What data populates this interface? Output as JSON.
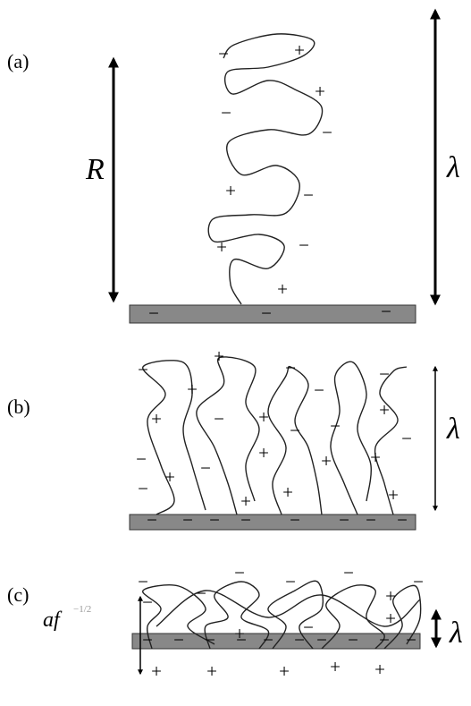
{
  "panels": [
    {
      "label": "(a)",
      "size_label": "R",
      "height_label": "λ",
      "charges": [
        "−",
        "+",
        "+",
        "−",
        "−",
        "+",
        "−",
        "+",
        "−",
        "+",
        "−",
        "−",
        "−"
      ]
    },
    {
      "label": "(b)",
      "height_label": "λ",
      "charges": [
        "−",
        "+",
        "−",
        "−",
        "−",
        "+",
        "+",
        "−",
        "+",
        "−",
        "+",
        "−",
        "−",
        "−",
        "+",
        "−",
        "+",
        "+",
        "+",
        "−",
        "+",
        "+",
        "+",
        "−",
        "−",
        "−",
        "−",
        "−",
        "−",
        "−",
        "−"
      ]
    },
    {
      "label": "(c)",
      "size_label": "af",
      "size_exponent": "−1/2",
      "height_label": "λ",
      "charges": [
        "−",
        "−",
        "−",
        "−",
        "−",
        "−",
        "+",
        "−",
        "+",
        "−",
        "+",
        "+",
        "+",
        "+",
        "+",
        "+",
        "−",
        "−",
        "−",
        "−",
        "−",
        "−",
        "−",
        "−",
        "−",
        "−"
      ]
    }
  ]
}
